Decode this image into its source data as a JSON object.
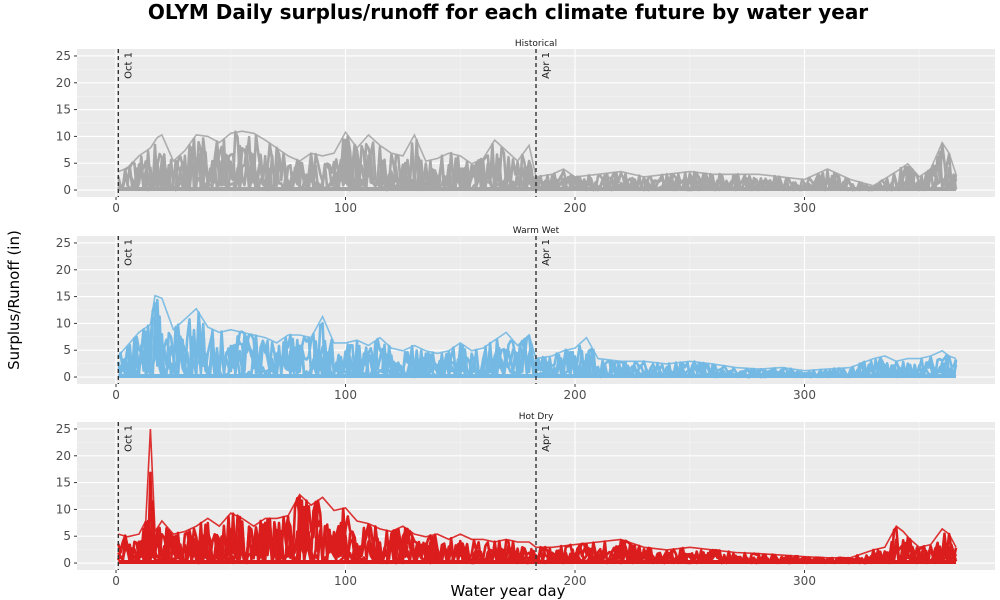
{
  "chart_data": {
    "type": "line",
    "title": "OLYM Daily surplus/runoff for each climate future by water year",
    "xlabel": "Water year day",
    "ylabel": "Surplus/Runoff (in)",
    "xlim": [
      -17,
      383
    ],
    "ylim": [
      -1.3,
      26.3
    ],
    "x_ticks": [
      0,
      100,
      200,
      300
    ],
    "y_ticks": [
      0,
      5,
      10,
      15,
      20,
      25
    ],
    "grid": true,
    "legend": "none",
    "reference_lines": [
      {
        "x": 1,
        "label": "Oct 1"
      },
      {
        "x": 183,
        "label": "Apr 1"
      }
    ],
    "panels": [
      {
        "label": "Historical",
        "color": "#a6a6a6",
        "envelope": [
          [
            1,
            3.5
          ],
          [
            5,
            4.2
          ],
          [
            10,
            6.5
          ],
          [
            15,
            8.0
          ],
          [
            18,
            10.0
          ],
          [
            20,
            10.5
          ],
          [
            25,
            5.5
          ],
          [
            30,
            7.5
          ],
          [
            35,
            10.5
          ],
          [
            40,
            10.2
          ],
          [
            45,
            9.0
          ],
          [
            50,
            10.8
          ],
          [
            55,
            11.2
          ],
          [
            60,
            10.8
          ],
          [
            65,
            9.5
          ],
          [
            70,
            8.0
          ],
          [
            75,
            6.5
          ],
          [
            80,
            5.5
          ],
          [
            85,
            7.0
          ],
          [
            90,
            6.5
          ],
          [
            95,
            7.0
          ],
          [
            100,
            11.0
          ],
          [
            105,
            8.0
          ],
          [
            110,
            10.5
          ],
          [
            115,
            8.5
          ],
          [
            120,
            7.0
          ],
          [
            125,
            6.5
          ],
          [
            130,
            10.5
          ],
          [
            135,
            5.5
          ],
          [
            140,
            6.0
          ],
          [
            145,
            7.0
          ],
          [
            150,
            6.5
          ],
          [
            155,
            5.0
          ],
          [
            160,
            6.0
          ],
          [
            165,
            9.5
          ],
          [
            170,
            7.5
          ],
          [
            175,
            5.5
          ],
          [
            180,
            8.5
          ],
          [
            183,
            2.5
          ],
          [
            190,
            3.0
          ],
          [
            195,
            4.0
          ],
          [
            200,
            2.5
          ],
          [
            210,
            3.0
          ],
          [
            220,
            3.5
          ],
          [
            230,
            2.5
          ],
          [
            240,
            3.0
          ],
          [
            250,
            3.5
          ],
          [
            260,
            3.0
          ],
          [
            270,
            3.0
          ],
          [
            280,
            3.0
          ],
          [
            290,
            2.5
          ],
          [
            300,
            2.0
          ],
          [
            310,
            4.0
          ],
          [
            320,
            2.0
          ],
          [
            330,
            0.8
          ],
          [
            340,
            3.5
          ],
          [
            345,
            5.0
          ],
          [
            350,
            2.5
          ],
          [
            355,
            4.0
          ],
          [
            360,
            9.0
          ],
          [
            363,
            7.0
          ],
          [
            366,
            3.0
          ]
        ]
      },
      {
        "label": "Warm Wet",
        "color": "#74b9e3",
        "envelope": [
          [
            1,
            4.0
          ],
          [
            5,
            6.0
          ],
          [
            10,
            8.5
          ],
          [
            15,
            10.0
          ],
          [
            17,
            15.5
          ],
          [
            20,
            15.0
          ],
          [
            25,
            9.0
          ],
          [
            30,
            11.0
          ],
          [
            35,
            13.0
          ],
          [
            40,
            9.5
          ],
          [
            45,
            8.5
          ],
          [
            50,
            9.0
          ],
          [
            55,
            8.5
          ],
          [
            60,
            8.0
          ],
          [
            65,
            7.5
          ],
          [
            70,
            6.5
          ],
          [
            75,
            8.0
          ],
          [
            80,
            8.0
          ],
          [
            85,
            7.5
          ],
          [
            90,
            11.5
          ],
          [
            95,
            6.5
          ],
          [
            100,
            6.5
          ],
          [
            105,
            7.0
          ],
          [
            110,
            6.0
          ],
          [
            115,
            7.5
          ],
          [
            120,
            5.5
          ],
          [
            125,
            5.0
          ],
          [
            130,
            6.0
          ],
          [
            135,
            5.0
          ],
          [
            140,
            4.5
          ],
          [
            145,
            5.0
          ],
          [
            150,
            6.5
          ],
          [
            155,
            5.0
          ],
          [
            160,
            5.5
          ],
          [
            165,
            7.0
          ],
          [
            170,
            8.5
          ],
          [
            175,
            6.0
          ],
          [
            180,
            8.0
          ],
          [
            183,
            3.5
          ],
          [
            190,
            4.0
          ],
          [
            195,
            5.0
          ],
          [
            200,
            5.5
          ],
          [
            205,
            7.5
          ],
          [
            210,
            3.5
          ],
          [
            220,
            3.0
          ],
          [
            230,
            3.0
          ],
          [
            240,
            2.5
          ],
          [
            250,
            3.0
          ],
          [
            260,
            2.5
          ],
          [
            270,
            1.8
          ],
          [
            280,
            1.5
          ],
          [
            290,
            1.8
          ],
          [
            300,
            1.2
          ],
          [
            310,
            1.5
          ],
          [
            320,
            1.8
          ],
          [
            330,
            3.5
          ],
          [
            335,
            4.0
          ],
          [
            340,
            3.0
          ],
          [
            345,
            3.5
          ],
          [
            350,
            3.5
          ],
          [
            355,
            4.0
          ],
          [
            360,
            5.0
          ],
          [
            363,
            4.0
          ],
          [
            366,
            3.5
          ]
        ]
      },
      {
        "label": "Hot Dry",
        "color": "#db1d1d",
        "envelope": [
          [
            1,
            5.5
          ],
          [
            5,
            5.0
          ],
          [
            10,
            5.5
          ],
          [
            13,
            8.0
          ],
          [
            15,
            25.5
          ],
          [
            17,
            6.0
          ],
          [
            20,
            8.0
          ],
          [
            25,
            5.5
          ],
          [
            30,
            6.0
          ],
          [
            35,
            7.0
          ],
          [
            40,
            8.5
          ],
          [
            45,
            7.0
          ],
          [
            50,
            9.5
          ],
          [
            55,
            8.5
          ],
          [
            60,
            7.0
          ],
          [
            65,
            8.5
          ],
          [
            70,
            8.5
          ],
          [
            75,
            9.0
          ],
          [
            80,
            13.0
          ],
          [
            85,
            11.0
          ],
          [
            90,
            12.5
          ],
          [
            95,
            10.0
          ],
          [
            100,
            10.5
          ],
          [
            105,
            8.0
          ],
          [
            110,
            7.5
          ],
          [
            115,
            6.5
          ],
          [
            120,
            6.0
          ],
          [
            125,
            7.0
          ],
          [
            130,
            5.5
          ],
          [
            135,
            5.0
          ],
          [
            140,
            5.5
          ],
          [
            145,
            4.5
          ],
          [
            150,
            5.5
          ],
          [
            155,
            4.5
          ],
          [
            160,
            4.5
          ],
          [
            165,
            4.0
          ],
          [
            170,
            4.5
          ],
          [
            175,
            4.0
          ],
          [
            180,
            4.0
          ],
          [
            183,
            3.0
          ],
          [
            190,
            3.0
          ],
          [
            200,
            3.5
          ],
          [
            210,
            4.0
          ],
          [
            220,
            4.5
          ],
          [
            230,
            3.0
          ],
          [
            240,
            2.5
          ],
          [
            250,
            3.0
          ],
          [
            260,
            2.5
          ],
          [
            270,
            2.0
          ],
          [
            280,
            1.8
          ],
          [
            290,
            1.5
          ],
          [
            300,
            1.2
          ],
          [
            310,
            1.0
          ],
          [
            320,
            1.0
          ],
          [
            330,
            2.5
          ],
          [
            335,
            3.0
          ],
          [
            340,
            7.0
          ],
          [
            343,
            6.0
          ],
          [
            346,
            4.5
          ],
          [
            350,
            3.0
          ],
          [
            355,
            3.5
          ],
          [
            360,
            6.5
          ],
          [
            363,
            5.5
          ],
          [
            366,
            3.0
          ]
        ]
      }
    ]
  }
}
